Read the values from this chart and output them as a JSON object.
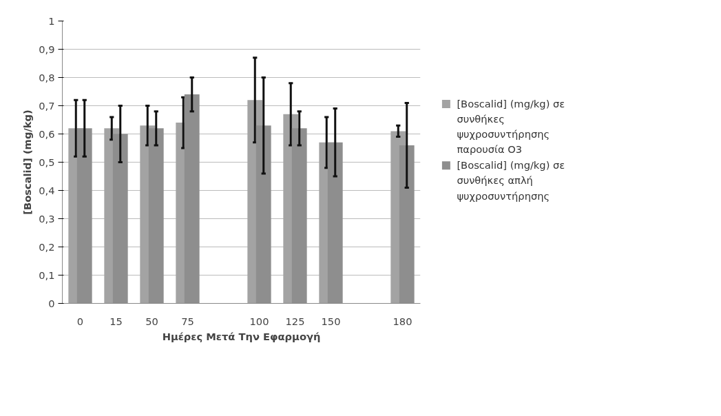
{
  "chart_data": {
    "type": "bar",
    "xlabel": "Ημέρες Μετά Την Εφαρμογή",
    "ylabel": "[Boscalid] (mg/kg)",
    "categories": [
      "0",
      "15",
      "50",
      "75",
      null,
      "100",
      "125",
      "150",
      null,
      "180"
    ],
    "series": [
      {
        "name": "[Boscalid] (mg/kg) σε συνθήκες ψυχροσυντήρησης παρουσία Ο3",
        "color": "#a3a3a3",
        "values": [
          0.62,
          0.62,
          0.63,
          0.64,
          null,
          0.72,
          0.67,
          0.57,
          null,
          0.61
        ],
        "errors": [
          0.1,
          0.04,
          0.07,
          0.09,
          null,
          0.15,
          0.11,
          0.09,
          null,
          0.02
        ]
      },
      {
        "name": "[Boscalid] (mg/kg) σε συνθήκες απλή ψυχροσυντήρησης",
        "color": "#8e8e8e",
        "values": [
          0.62,
          0.6,
          0.62,
          0.74,
          null,
          0.63,
          0.62,
          0.57,
          null,
          0.56
        ],
        "errors": [
          0.1,
          0.1,
          0.06,
          0.06,
          null,
          0.17,
          0.06,
          0.12,
          null,
          0.15
        ]
      }
    ],
    "ylim": [
      0,
      1
    ],
    "yticks": [
      0,
      {
        "value": 0.1,
        "label": "0,1"
      },
      {
        "value": 0.2,
        "label": "0,2"
      },
      {
        "value": 0.3,
        "label": "0,3"
      },
      {
        "value": 0.4,
        "label": "0,4"
      },
      {
        "value": 0.5,
        "label": "0,5"
      },
      {
        "value": 0.6,
        "label": "0,6"
      },
      {
        "value": 0.7,
        "label": "0,7"
      },
      {
        "value": 0.8,
        "label": "0,8"
      },
      {
        "value": 0.9,
        "label": "0,9"
      },
      1
    ],
    "grid": "y",
    "legend": "right"
  }
}
